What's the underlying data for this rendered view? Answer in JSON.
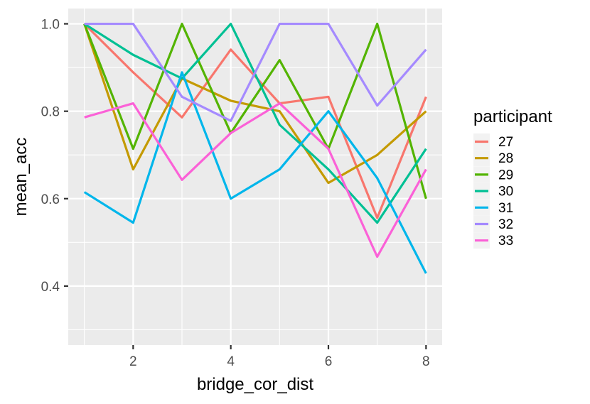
{
  "chart_data": {
    "type": "line",
    "xlabel": "bridge_cor_dist",
    "ylabel": "mean_acc",
    "x": [
      1,
      2,
      3,
      4,
      5,
      6,
      7,
      8
    ],
    "xlim": [
      0.67,
      8.33
    ],
    "ylim": [
      0.265,
      1.035
    ],
    "x_ticks": [
      2,
      4,
      6,
      8
    ],
    "x_tick_labels": [
      "2",
      "4",
      "6",
      "8"
    ],
    "y_ticks": [
      0.4,
      0.6,
      0.8,
      1.0
    ],
    "y_tick_labels": [
      "0.4",
      "0.6",
      "0.8",
      "1.0"
    ],
    "grid": true,
    "legend": {
      "title": "participant",
      "position": "right"
    },
    "series": [
      {
        "name": "27",
        "color": "#F8766D",
        "values": [
          1.0,
          0.889,
          0.786,
          0.941,
          0.818,
          0.833,
          0.556,
          0.833
        ]
      },
      {
        "name": "28",
        "color": "#C49A00",
        "values": [
          1.0,
          0.667,
          0.875,
          0.824,
          0.8,
          0.636,
          0.7,
          0.8
        ]
      },
      {
        "name": "29",
        "color": "#53B400",
        "values": [
          1.0,
          0.714,
          1.0,
          0.75,
          0.917,
          0.714,
          1.0,
          0.6
        ]
      },
      {
        "name": "30",
        "color": "#00C094",
        "values": [
          1.0,
          0.929,
          0.875,
          1.0,
          0.769,
          0.667,
          0.545,
          0.714
        ]
      },
      {
        "name": "31",
        "color": "#00B6EB",
        "values": [
          0.615,
          0.545,
          0.889,
          0.6,
          0.667,
          0.8,
          0.647,
          0.429
        ]
      },
      {
        "name": "32",
        "color": "#A58AFF",
        "values": [
          1.0,
          1.0,
          0.833,
          0.778,
          1.0,
          1.0,
          0.813,
          0.941
        ]
      },
      {
        "name": "33",
        "color": "#FB61D7",
        "values": [
          0.786,
          0.818,
          0.643,
          0.75,
          0.818,
          0.714,
          0.467,
          0.667
        ]
      }
    ]
  }
}
